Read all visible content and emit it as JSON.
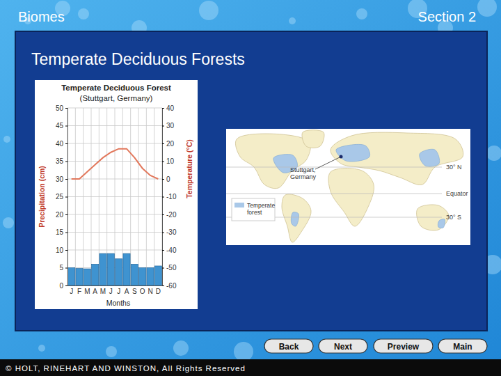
{
  "slide": {
    "header": "Biomes",
    "section": "Section 2",
    "title": "Temperate Deciduous Forests",
    "buttons": [
      "Back",
      "Next",
      "Preview",
      "Main"
    ],
    "footer": "© HOLT, RINEHART AND WINSTON, All Rights Reserved"
  },
  "map": {
    "city_label": [
      "Stuttgart,",
      "Germany"
    ],
    "latitude_labels": [
      "30° N",
      "Equator",
      "30° S"
    ],
    "legend": [
      "Temperate",
      "forest"
    ]
  },
  "chart_data": {
    "type": "bar",
    "title": "Temperate Deciduous Forest",
    "subtitle": "(Stuttgart, Germany)",
    "x_label": "Months",
    "y_label": "Precipitation (cm)",
    "y2_label": "Temperature (°C)",
    "categories": [
      "J",
      "F",
      "M",
      "A",
      "M",
      "J",
      "J",
      "A",
      "S",
      "O",
      "N",
      "D"
    ],
    "series": [
      {
        "type": "bar",
        "color": "#3f93d0",
        "values": [
          5,
          4.8,
          4.7,
          6,
          9,
          9,
          7.5,
          9,
          6,
          5,
          5,
          5.5
        ]
      },
      {
        "type": "line",
        "axis": "y2",
        "color": "#e2785c",
        "values": [
          0,
          0,
          4,
          8,
          12,
          15,
          17,
          17,
          12,
          6,
          2,
          0
        ]
      }
    ],
    "ylim": [
      0,
      50
    ],
    "yticks": [
      0,
      5,
      10,
      15,
      20,
      25,
      30,
      35,
      40,
      45,
      50
    ],
    "y2lim": [
      -60,
      40
    ],
    "y2ticks": [
      -60,
      -50,
      -40,
      -30,
      -20,
      -10,
      0,
      10,
      20,
      30,
      40
    ],
    "grid": true
  }
}
